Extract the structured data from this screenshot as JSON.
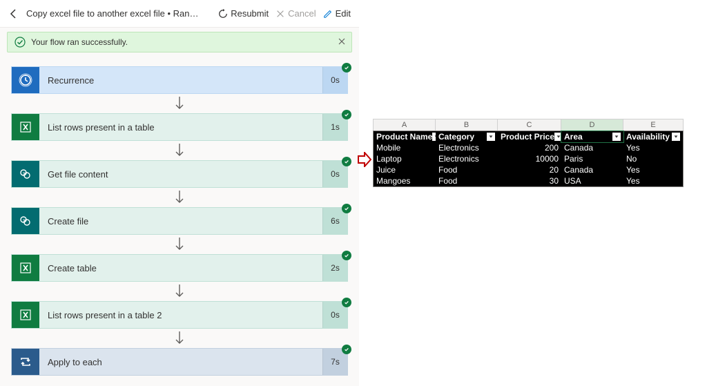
{
  "toolbar": {
    "title": "Copy excel file to another excel file • Ran at...",
    "resubmit": "Resubmit",
    "cancel": "Cancel",
    "edit": "Edit"
  },
  "banner": {
    "message": "Your flow ran successfully."
  },
  "steps": [
    {
      "id": "recurrence",
      "label": "Recurrence",
      "duration": "0s",
      "variant": "s-recurrence",
      "icon": "clock"
    },
    {
      "id": "list-rows-1",
      "label": "List rows present in a table",
      "duration": "1s",
      "variant": "s-excel",
      "icon": "excel"
    },
    {
      "id": "get-file",
      "label": "Get file content",
      "duration": "0s",
      "variant": "s-sp",
      "icon": "sp"
    },
    {
      "id": "create-file",
      "label": "Create file",
      "duration": "6s",
      "variant": "s-sp",
      "icon": "sp"
    },
    {
      "id": "create-table",
      "label": "Create table",
      "duration": "2s",
      "variant": "s-excel",
      "icon": "excel"
    },
    {
      "id": "list-rows-2",
      "label": "List rows present in a table 2",
      "duration": "0s",
      "variant": "s-excel",
      "icon": "excel"
    },
    {
      "id": "apply",
      "label": "Apply to each",
      "duration": "7s",
      "variant": "s-apply",
      "icon": "loop"
    }
  ],
  "colors": {
    "success_check": "#107c41",
    "arrow": "#605e5c",
    "red_arrow": "#c00000"
  },
  "excel": {
    "column_letters": [
      "A",
      "B",
      "C",
      "D",
      "E"
    ],
    "selected_column_index": 3,
    "columns": [
      {
        "header": "Product Name",
        "cls": "cA",
        "align": "left"
      },
      {
        "header": "Category",
        "cls": "cB",
        "align": "left"
      },
      {
        "header": "Product Price",
        "cls": "cC",
        "align": "right"
      },
      {
        "header": "Area",
        "cls": "cD",
        "align": "left"
      },
      {
        "header": "Availability",
        "cls": "cE",
        "align": "left"
      }
    ],
    "rows": [
      [
        "Mobile",
        "Electronics",
        "200",
        "Canada",
        "Yes"
      ],
      [
        "Laptop",
        "Electronics",
        "10000",
        "Paris",
        "No"
      ],
      [
        "Juice",
        "Food",
        "20",
        "Canada",
        "Yes"
      ],
      [
        "Mangoes",
        "Food",
        "30",
        "USA",
        "Yes"
      ]
    ]
  }
}
